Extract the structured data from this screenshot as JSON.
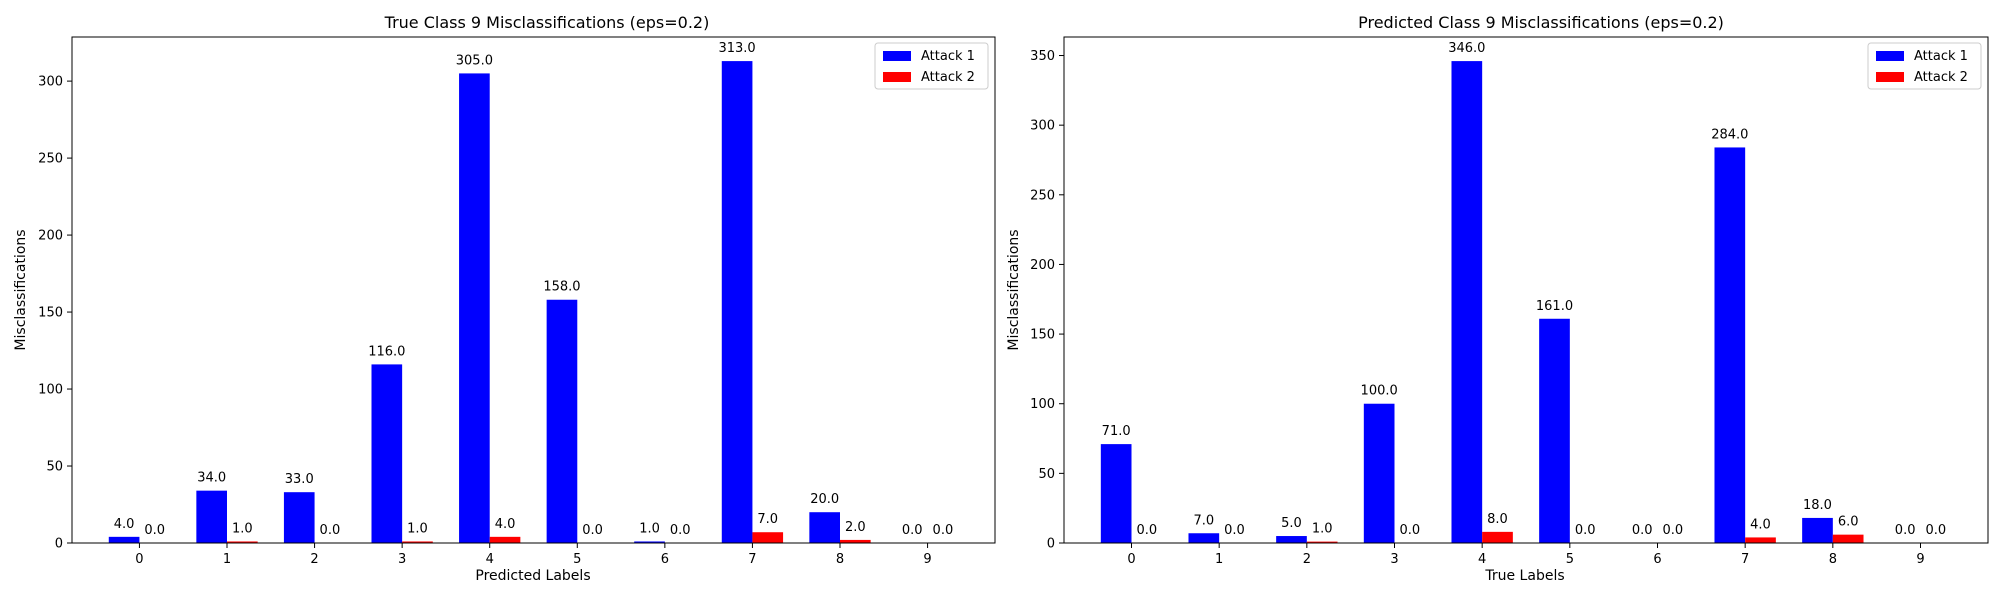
{
  "chart_data": [
    {
      "type": "bar",
      "title": "True Class 9 Misclassifications (eps=0.2)",
      "xlabel": "Predicted Labels",
      "ylabel": "Misclassifications",
      "categories": [
        "0",
        "1",
        "2",
        "3",
        "4",
        "5",
        "6",
        "7",
        "8",
        "9"
      ],
      "series": [
        {
          "name": "Attack 1",
          "color": "#0000ff",
          "values": [
            4,
            34,
            33,
            116,
            305,
            158,
            1,
            313,
            20,
            0
          ]
        },
        {
          "name": "Attack 2",
          "color": "#ff0000",
          "values": [
            0,
            1,
            0,
            1,
            4,
            0,
            0,
            7,
            2,
            0
          ]
        }
      ],
      "value_labels": [
        [
          "4.0",
          "34.0",
          "33.0",
          "116.0",
          "305.0",
          "158.0",
          "1.0",
          "313.0",
          "20.0",
          "0.0"
        ],
        [
          "0.0",
          "1.0",
          "0.0",
          "1.0",
          "4.0",
          "0.0",
          "0.0",
          "7.0",
          "2.0",
          "0.0"
        ]
      ],
      "ylim": [
        0,
        328.65
      ],
      "yticks": [
        0,
        50,
        100,
        150,
        200,
        250,
        300
      ],
      "legend": "top-right",
      "grid": false
    },
    {
      "type": "bar",
      "title": "Predicted Class 9 Misclassifications (eps=0.2)",
      "xlabel": "True Labels",
      "ylabel": "Misclassifications",
      "categories": [
        "0",
        "1",
        "2",
        "3",
        "4",
        "5",
        "6",
        "7",
        "8",
        "9"
      ],
      "series": [
        {
          "name": "Attack 1",
          "color": "#0000ff",
          "values": [
            71,
            7,
            5,
            100,
            346,
            161,
            0,
            284,
            18,
            0
          ]
        },
        {
          "name": "Attack 2",
          "color": "#ff0000",
          "values": [
            0,
            0,
            1,
            0,
            8,
            0,
            0,
            4,
            6,
            0
          ]
        }
      ],
      "value_labels": [
        [
          "71.0",
          "7.0",
          "5.0",
          "100.0",
          "346.0",
          "161.0",
          "0.0",
          "284.0",
          "18.0",
          "0.0"
        ],
        [
          "0.0",
          "0.0",
          "1.0",
          "0.0",
          "8.0",
          "0.0",
          "0.0",
          "4.0",
          "6.0",
          "0.0"
        ]
      ],
      "ylim": [
        0,
        363.3
      ],
      "yticks": [
        0,
        50,
        100,
        150,
        200,
        250,
        300,
        350
      ],
      "legend": "top-right",
      "grid": false
    }
  ]
}
